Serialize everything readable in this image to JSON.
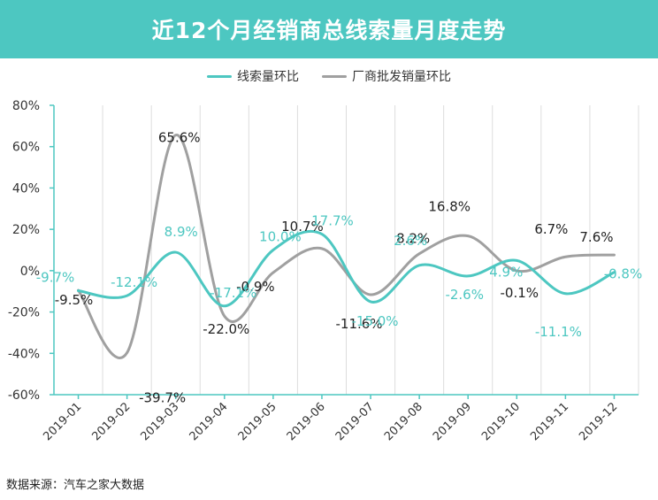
{
  "header": {
    "title": "近12个月经销商总线索量月度走势"
  },
  "footer": {
    "source": "数据来源：汽车之家大数据"
  },
  "chart_data": {
    "type": "line",
    "categories": [
      "2019-01",
      "2019-02",
      "2019-03",
      "2019-04",
      "2019-05",
      "2019-06",
      "2019-07",
      "2019-08",
      "2019-09",
      "2019-10",
      "2019-11",
      "2019-12"
    ],
    "ylim": [
      -60,
      80
    ],
    "yticks": [
      "80%",
      "60%",
      "40%",
      "20%",
      "0%",
      "-20%",
      "-40%",
      "-60%"
    ],
    "grid": "vertical",
    "legend_position": "top",
    "series": [
      {
        "name": "线索量环比",
        "color": "#4dc7c1",
        "values": [
          -9.7,
          -12.1,
          8.9,
          -17.1,
          10.0,
          17.7,
          -15.0,
          2.6,
          -2.6,
          4.9,
          -11.1,
          -0.8
        ],
        "labels": [
          "-9.7%",
          "-12.1%",
          "8.9%",
          "-17.1%",
          "10.0%",
          "17.7%",
          "-15.0%",
          "2.6%",
          "-2.6%",
          "4.9%",
          "-11.1%",
          "-0.8%"
        ]
      },
      {
        "name": "厂商批发销量环比",
        "color": "#a0a0a0",
        "values": [
          -9.5,
          -39.7,
          65.6,
          -22.0,
          -0.9,
          10.7,
          -11.6,
          8.2,
          16.8,
          -0.1,
          6.7,
          7.6
        ],
        "labels": [
          "-9.5%",
          "-39.7%",
          "65.6%",
          "-22.0%",
          "-0.9%",
          "10.7%",
          "-11.6%",
          "8.2%",
          "16.8%",
          "-0.1%",
          "6.7%",
          "7.6%"
        ]
      }
    ]
  }
}
